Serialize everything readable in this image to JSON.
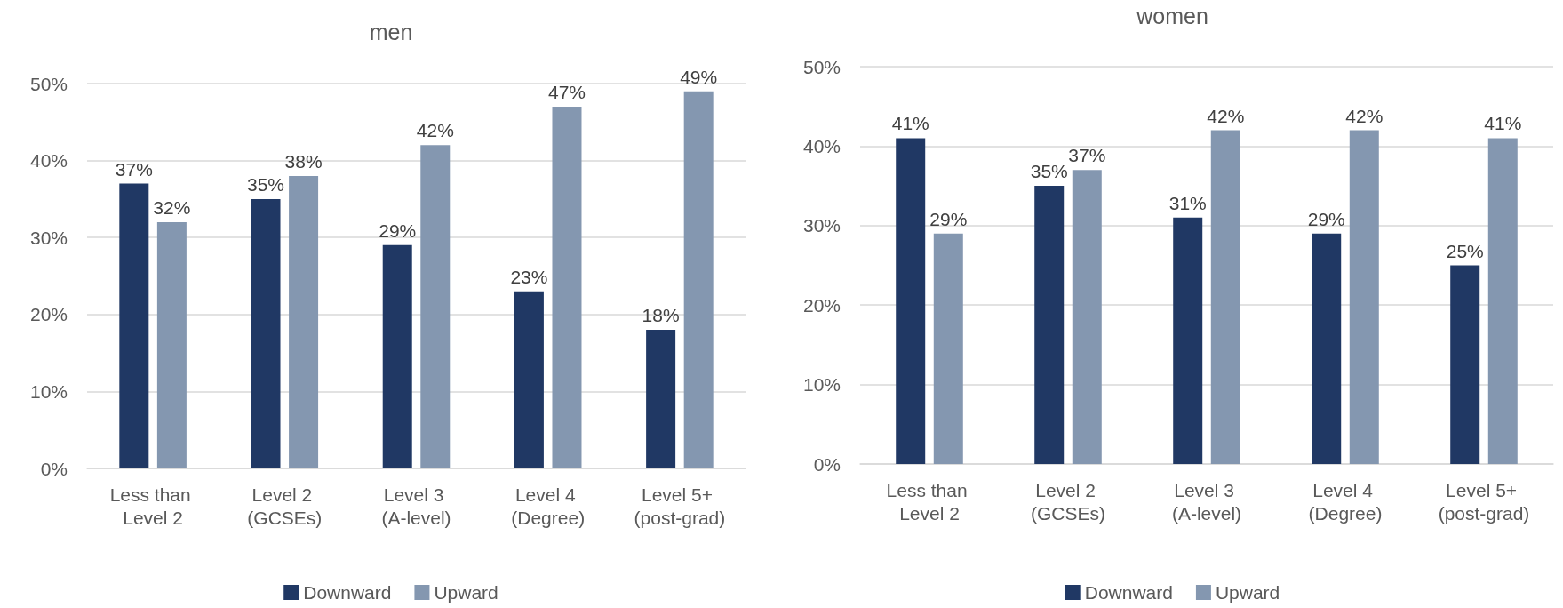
{
  "chart_data": [
    {
      "type": "bar",
      "title": "men",
      "categories": [
        "Less than Level 2",
        "Level 2 (GCSEs)",
        "Level 3 (A-level)",
        "Level 4 (Degree)",
        "Level 5+ (post-grad)"
      ],
      "series": [
        {
          "name": "Downward",
          "color": "#203864",
          "values": [
            37,
            35,
            29,
            23,
            18
          ],
          "value_labels": [
            "37%",
            "35%",
            "29%",
            "23%",
            "18%"
          ]
        },
        {
          "name": "Upward",
          "color": "#8497b0",
          "values": [
            32,
            38,
            42,
            47,
            49
          ],
          "value_labels": [
            "32%",
            "38%",
            "42%",
            "47%",
            "49%"
          ]
        }
      ],
      "ylim": [
        0,
        50
      ],
      "yticks": [
        {
          "value": 0,
          "label": "0%"
        },
        {
          "value": 10,
          "label": "10%"
        },
        {
          "value": 20,
          "label": "20%"
        },
        {
          "value": 30,
          "label": "30%"
        },
        {
          "value": 40,
          "label": "40%"
        },
        {
          "value": 50,
          "label": "50%"
        }
      ],
      "grid": "y",
      "legend": "bottom"
    },
    {
      "type": "bar",
      "title": "women",
      "categories": [
        "Less than Level 2",
        "Level 2 (GCSEs)",
        "Level 3 (A-level)",
        "Level 4 (Degree)",
        "Level 5+ (post-grad)"
      ],
      "series": [
        {
          "name": "Downward",
          "color": "#203864",
          "values": [
            41,
            35,
            31,
            29,
            25
          ],
          "value_labels": [
            "41%",
            "35%",
            "31%",
            "29%",
            "25%"
          ]
        },
        {
          "name": "Upward",
          "color": "#8497b0",
          "values": [
            29,
            37,
            42,
            42,
            41
          ],
          "value_labels": [
            "29%",
            "37%",
            "42%",
            "42%",
            "41%"
          ]
        }
      ],
      "ylim": [
        0,
        50
      ],
      "yticks": [
        {
          "value": 0,
          "label": "0%"
        },
        {
          "value": 10,
          "label": "10%"
        },
        {
          "value": 20,
          "label": "20%"
        },
        {
          "value": 30,
          "label": "30%"
        },
        {
          "value": 40,
          "label": "40%"
        },
        {
          "value": 50,
          "label": "50%"
        }
      ],
      "grid": "y",
      "legend": "bottom"
    }
  ]
}
